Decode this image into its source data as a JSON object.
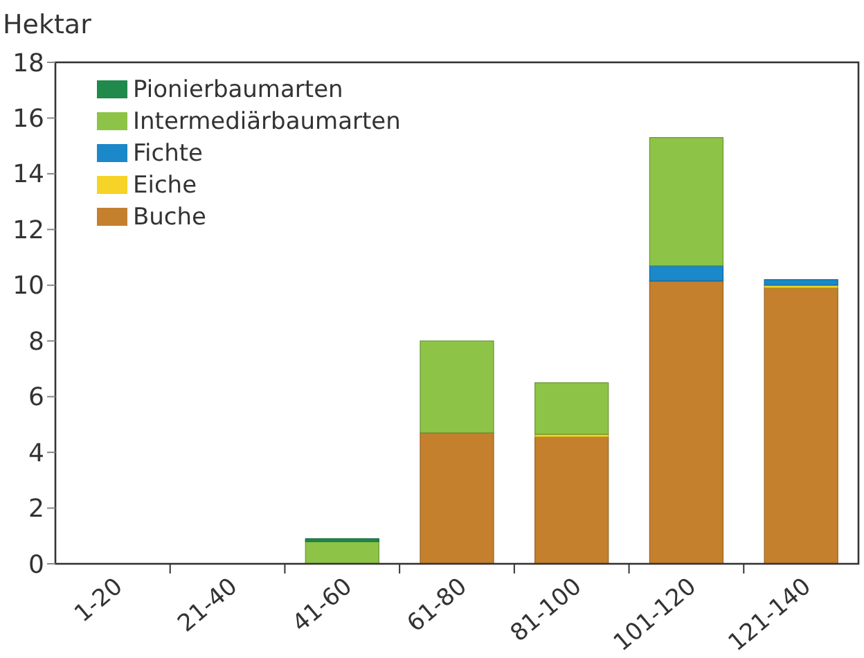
{
  "chart_data": {
    "type": "bar",
    "stacked": true,
    "ylabel": "Hektar",
    "categories": [
      "1-20",
      "21-40",
      "41-60",
      "61-80",
      "81-100",
      "101-120",
      "121-140"
    ],
    "series": [
      {
        "name": "Buche",
        "color": "#c5802e",
        "values": [
          0,
          0,
          0,
          4.7,
          4.55,
          10.15,
          9.9
        ]
      },
      {
        "name": "Eiche",
        "color": "#f5d327",
        "values": [
          0,
          0,
          0,
          0,
          0.1,
          0,
          0.1
        ]
      },
      {
        "name": "Fichte",
        "color": "#1a88c9",
        "values": [
          0,
          0,
          0,
          0,
          0,
          0.55,
          0.2
        ]
      },
      {
        "name": "Intermediärbaumarten",
        "color": "#8dc447",
        "values": [
          0,
          0,
          0.8,
          3.3,
          1.85,
          4.6,
          0
        ]
      },
      {
        "name": "Pionierbaumarten",
        "color": "#1f8a4c",
        "values": [
          0,
          0,
          0.1,
          0,
          0,
          0,
          0
        ]
      }
    ],
    "ylim": [
      0,
      18
    ],
    "yticks": [
      0,
      2,
      4,
      6,
      8,
      10,
      12,
      14,
      16,
      18
    ],
    "grid": false,
    "legend": "top left"
  }
}
